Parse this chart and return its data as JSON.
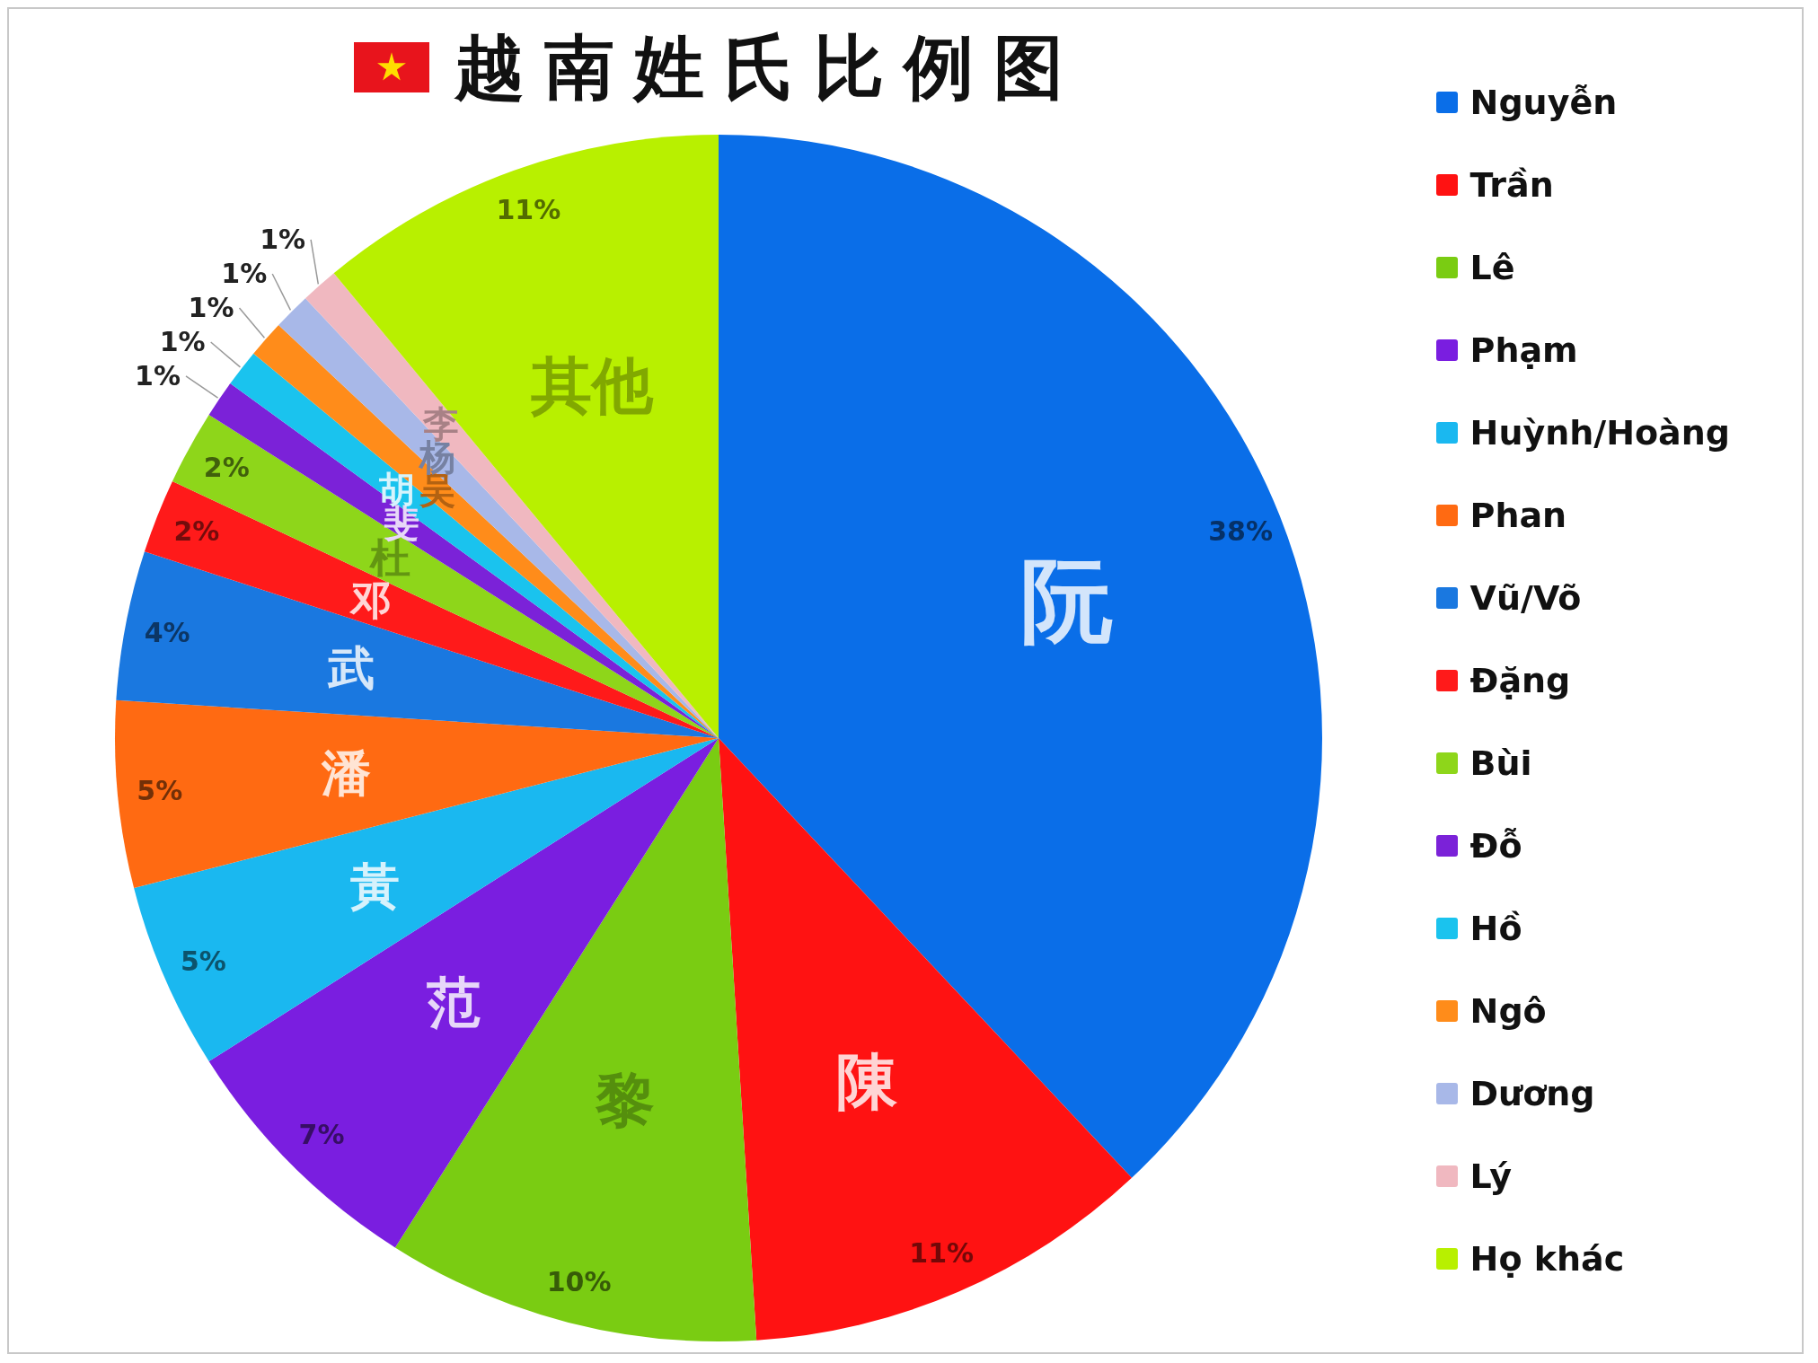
{
  "chart_data": {
    "type": "pie",
    "title": "越南姓氏比例图",
    "categories": [
      "Nguyễn",
      "Trần",
      "Lê",
      "Phạm",
      "Huỳnh/Hoàng",
      "Phan",
      "Vũ/Võ",
      "Đặng",
      "Bùi",
      "Đỗ",
      "Hồ",
      "Ngô",
      "Dương",
      "Lý",
      "Họ khác"
    ],
    "values": [
      38,
      11,
      10,
      7,
      5,
      5,
      4,
      2,
      2,
      1,
      1,
      1,
      1,
      1,
      11
    ],
    "colors": [
      "#0a6ee8",
      "#ff1212",
      "#7acc12",
      "#7a1ee0",
      "#1ab8f0",
      "#ff6a12",
      "#1a78e0",
      "#ff1a1a",
      "#8ed61a",
      "#7b22d8",
      "#1ac3ee",
      "#ff8c1a",
      "#a8b8e8",
      "#f0b8c0",
      "#b8f000"
    ],
    "value_labels": [
      "38%",
      "11%",
      "10%",
      "7%",
      "5%",
      "5%",
      "4%",
      "2%",
      "2%",
      "1%",
      "1%",
      "1%",
      "1%",
      "1%",
      "11%"
    ],
    "legend": "right",
    "annotations": [
      {
        "text": "阮",
        "x": "Nguyễn"
      },
      {
        "text": "陳",
        "x": "Trần"
      },
      {
        "text": "黎",
        "x": "Lê"
      },
      {
        "text": "范",
        "x": "Phạm"
      },
      {
        "text": "黃",
        "x": "Huỳnh/Hoàng"
      },
      {
        "text": "潘",
        "x": "Phan"
      },
      {
        "text": "武",
        "x": "Vũ/Võ"
      },
      {
        "text": "邓",
        "x": "Đặng"
      },
      {
        "text": "杜",
        "x": "Bùi"
      },
      {
        "text": "斐",
        "x": "Đỗ"
      },
      {
        "text": "胡",
        "x": "Hồ"
      },
      {
        "text": "吴",
        "x": "Ngô"
      },
      {
        "text": "杨",
        "x": "Dương"
      },
      {
        "text": "李",
        "x": "Lý"
      },
      {
        "text": "其他",
        "x": "Họ khác"
      }
    ]
  }
}
